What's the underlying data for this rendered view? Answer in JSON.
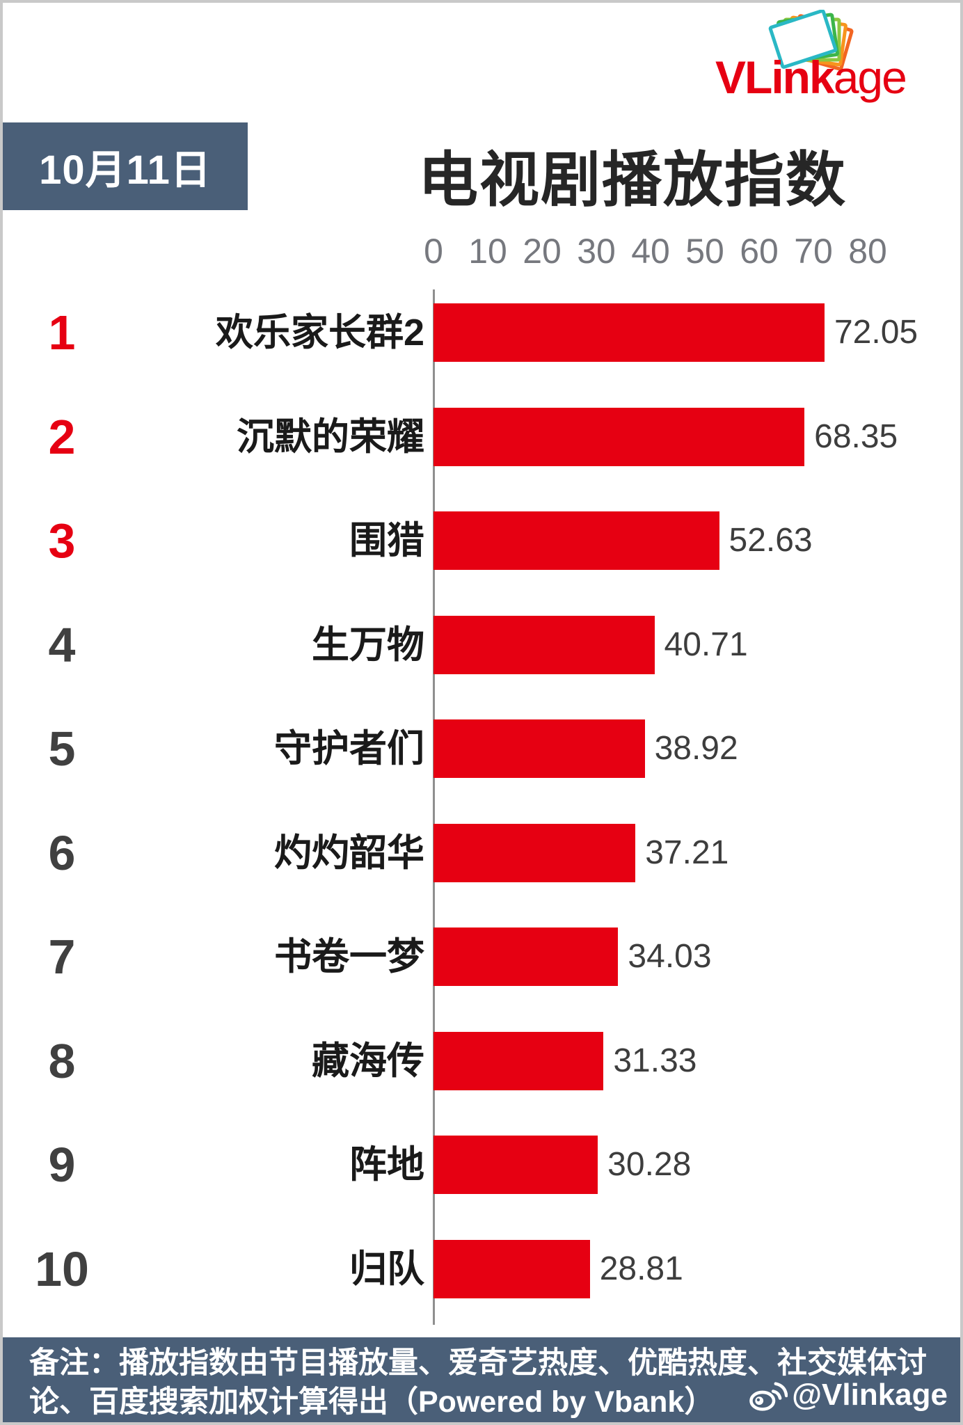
{
  "logo": {
    "text_bold": "VLink",
    "text_light": "age",
    "icon": "stacked-cards-icon",
    "color": "#e60012"
  },
  "header": {
    "date_badge": "10月11日",
    "title": "电视剧播放指数"
  },
  "chart_data": {
    "type": "bar",
    "orientation": "horizontal",
    "title": "电视剧播放指数",
    "date": "10月11日",
    "categories": [
      "欢乐家长群2",
      "沉默的荣耀",
      "围猎",
      "生万物",
      "守护者们",
      "灼灼韶华",
      "书卷一梦",
      "藏海传",
      "阵地",
      "归队"
    ],
    "values": [
      72.05,
      68.35,
      52.63,
      40.71,
      38.92,
      37.21,
      34.03,
      31.33,
      30.28,
      28.81
    ],
    "ranks": [
      1,
      2,
      3,
      4,
      5,
      6,
      7,
      8,
      9,
      10
    ],
    "x_ticks": [
      0,
      10,
      20,
      30,
      40,
      50,
      60,
      70,
      80
    ],
    "xlim": [
      0,
      80
    ],
    "grid": false,
    "legend": false,
    "bar_color": "#e60012",
    "rank_top3_color": "#e60012",
    "rank_color": "#404040"
  },
  "footer": {
    "note": "备注：播放指数由节目播放量、爱奇艺热度、优酷热度、社交媒体讨论、百度搜索加权计算得出（Powered by Vbank）",
    "weibo_handle": "@Vlinkage",
    "weibo_icon": "weibo-icon"
  },
  "colors": {
    "accent_red": "#e60012",
    "slate_blue": "#4a5f78",
    "tick_gray": "#76787e",
    "axis_gray": "#8f8f8f",
    "page_border": "#c9c9c9"
  }
}
